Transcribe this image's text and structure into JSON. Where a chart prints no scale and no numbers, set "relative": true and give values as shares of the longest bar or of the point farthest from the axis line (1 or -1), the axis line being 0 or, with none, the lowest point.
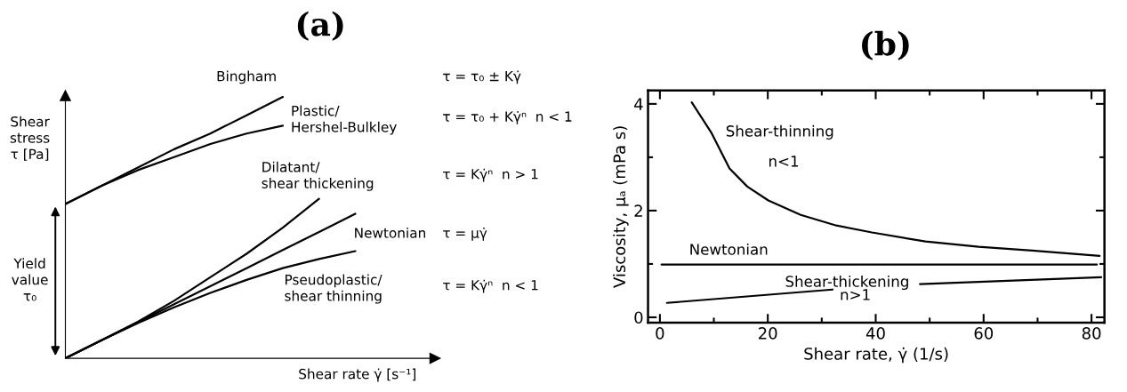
{
  "chart_data": [
    {
      "type": "line",
      "title": "(a)",
      "relative": true,
      "xlabel": "Shear rate γ̇ [s⁻¹]",
      "ylabel": "Shear\nstress\nτ [Pa]",
      "categories": [
        null,
        null,
        null,
        null,
        null,
        null,
        null,
        null,
        null
      ],
      "series": [
        {
          "name": "Bingham",
          "color": "#000000",
          "values": [
            0.59,
            0.66,
            0.73,
            0.8,
            0.86,
            0.93,
            1.0,
            null,
            null
          ]
        },
        {
          "name": "Plastic/\nHershel-Bulkley",
          "color": "#000000",
          "values": [
            0.59,
            0.66,
            0.72,
            0.77,
            0.82,
            0.86,
            0.89,
            null,
            null
          ]
        },
        {
          "name": "Dilatant/\nshear thickening",
          "color": "#000000",
          "values": [
            0,
            0.069,
            0.14,
            0.22,
            0.31,
            0.4,
            0.5,
            0.61,
            null
          ]
        },
        {
          "name": "Newtonian",
          "color": "#000000",
          "values": [
            0,
            0.069,
            0.138,
            0.207,
            0.276,
            0.345,
            0.414,
            0.483,
            0.553
          ]
        },
        {
          "name": "Pseudoplastic/\nshear thinning",
          "color": "#000000",
          "values": [
            0,
            0.069,
            0.135,
            0.195,
            0.25,
            0.3,
            0.345,
            0.38,
            0.41
          ]
        }
      ],
      "annotations": [
        "Yield\nvalue\nτ₀",
        "τ = τ₀ ± Kγ̇",
        "τ = τ₀ + Kγ̇ⁿ  n < 1",
        "τ = Kγ̇ⁿ  n > 1",
        "τ = μγ̇",
        "τ = Kγ̇ⁿ  n < 1"
      ]
    },
    {
      "type": "line",
      "title": "(b)",
      "xlabel": "Shear rate, γ̇ (1/s)",
      "ylabel": "Viscosity, μₐ (mPa s)",
      "xlim": [
        -2.2,
        82.4
      ],
      "ylim": [
        -0.1,
        4.25
      ],
      "xticks": [
        0,
        20,
        40,
        60,
        80
      ],
      "yticks": [
        0,
        2,
        4
      ],
      "series": [
        {
          "name": "Shear-thinning",
          "color": "#000000",
          "x": [
            5.9,
            9.6,
            12.9,
            16.2,
            20.1,
            26.1,
            32.7,
            39.3,
            49.2,
            59.1,
            69,
            81.5
          ],
          "values": [
            4.03,
            3.45,
            2.79,
            2.45,
            2.19,
            1.92,
            1.72,
            1.59,
            1.42,
            1.32,
            1.25,
            1.15
          ]
        },
        {
          "name": "Newtonian",
          "color": "#000000",
          "x": [
            0.3,
            81
          ],
          "values": [
            0.99,
            0.99
          ]
        },
        {
          "name": "Shear-thickening",
          "color": "#000000",
          "x": [
            1.3,
            32,
            40,
            48.2,
            81.8
          ],
          "values": [
            0.27,
            0.52,
            null,
            0.62,
            0.75
          ]
        }
      ],
      "annotations": [
        "n<1",
        "n>1"
      ]
    }
  ]
}
